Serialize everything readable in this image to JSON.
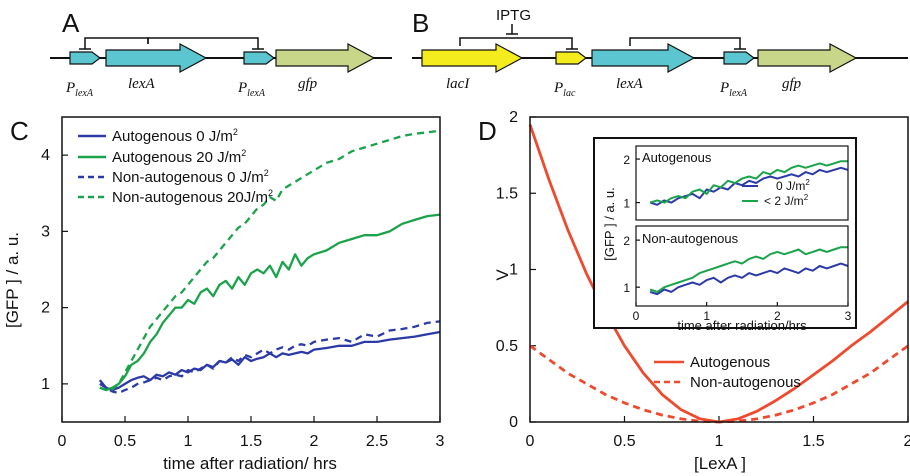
{
  "panels": {
    "a": {
      "label": "A",
      "genes": [
        "lexA",
        "gfp"
      ],
      "promoter_text": "P",
      "promoter_sub": "lexA"
    },
    "b": {
      "label": "B",
      "inducer": "IPTG",
      "genes": [
        "lacI",
        "lexA",
        "gfp"
      ],
      "promoters": [
        {
          "text": "P",
          "sub": "lac"
        },
        {
          "text": "P",
          "sub": "lexA"
        }
      ]
    },
    "c": {
      "label": "C"
    },
    "d": {
      "label": "D"
    }
  },
  "colors": {
    "blue": "#2c3aa8",
    "green": "#1aa34a",
    "red": "#ee4a2e",
    "cyan_gene": "#5bc6d0",
    "yellow_gene": "#f5ec1e",
    "olive_gene": "#c8d68a"
  },
  "chart_data": [
    {
      "id": "C",
      "type": "line",
      "xlabel": "time after radiation/ hrs",
      "ylabel": "[GFP ] / a. u.",
      "xlim": [
        0,
        3
      ],
      "ylim": [
        0.5,
        4.5
      ],
      "xticks": [
        0,
        0.5,
        1,
        1.5,
        2,
        2.5,
        3
      ],
      "xtick_labels": [
        "0",
        "0.5",
        "1",
        "1.5",
        "2",
        "2.5",
        "3"
      ],
      "yticks": [
        1,
        2,
        3,
        4
      ],
      "ytick_labels": [
        "1",
        "2",
        "3",
        "4"
      ],
      "legend": {
        "placement": "top-left"
      },
      "series": [
        {
          "name": "Autogenous  0 J/m",
          "unit_sup": "2",
          "color": "blue",
          "dash": false,
          "x": [
            0.3,
            0.35,
            0.4,
            0.45,
            0.5,
            0.55,
            0.6,
            0.65,
            0.7,
            0.75,
            0.8,
            0.85,
            0.9,
            0.95,
            1.0,
            1.05,
            1.1,
            1.15,
            1.2,
            1.25,
            1.3,
            1.35,
            1.4,
            1.45,
            1.5,
            1.55,
            1.6,
            1.65,
            1.7,
            1.75,
            1.8,
            1.85,
            1.9,
            1.95,
            2.0,
            2.1,
            2.2,
            2.3,
            2.4,
            2.5,
            2.6,
            2.7,
            2.8,
            2.9,
            3.0
          ],
          "y": [
            1.05,
            0.95,
            0.92,
            0.95,
            1.0,
            1.05,
            1.08,
            1.1,
            1.05,
            1.12,
            1.1,
            1.15,
            1.12,
            1.18,
            1.15,
            1.2,
            1.18,
            1.25,
            1.22,
            1.3,
            1.28,
            1.32,
            1.25,
            1.35,
            1.3,
            1.33,
            1.35,
            1.4,
            1.35,
            1.4,
            1.38,
            1.4,
            1.42,
            1.4,
            1.45,
            1.47,
            1.5,
            1.5,
            1.55,
            1.55,
            1.58,
            1.6,
            1.62,
            1.65,
            1.68
          ]
        },
        {
          "name": "Autogenous  20 J/m",
          "unit_sup": "2",
          "color": "green",
          "dash": false,
          "x": [
            0.3,
            0.35,
            0.4,
            0.45,
            0.5,
            0.55,
            0.6,
            0.65,
            0.7,
            0.75,
            0.8,
            0.85,
            0.9,
            0.95,
            1.0,
            1.05,
            1.1,
            1.15,
            1.2,
            1.25,
            1.3,
            1.35,
            1.4,
            1.45,
            1.5,
            1.55,
            1.6,
            1.65,
            1.7,
            1.75,
            1.8,
            1.85,
            1.9,
            1.95,
            2.0,
            2.1,
            2.2,
            2.3,
            2.4,
            2.5,
            2.6,
            2.7,
            2.8,
            2.9,
            3.0
          ],
          "y": [
            0.95,
            0.92,
            0.95,
            1.0,
            1.1,
            1.25,
            1.3,
            1.4,
            1.55,
            1.65,
            1.8,
            1.9,
            2.0,
            2.0,
            2.1,
            2.05,
            2.2,
            2.25,
            2.15,
            2.3,
            2.35,
            2.25,
            2.4,
            2.3,
            2.45,
            2.5,
            2.45,
            2.55,
            2.4,
            2.6,
            2.5,
            2.7,
            2.55,
            2.65,
            2.7,
            2.75,
            2.85,
            2.9,
            2.95,
            2.95,
            3.0,
            3.1,
            3.15,
            3.2,
            3.22
          ]
        },
        {
          "name": "Non-autogenous 0 J/m",
          "unit_sup": "2",
          "color": "blue",
          "dash": true,
          "x": [
            0.3,
            0.35,
            0.4,
            0.45,
            0.5,
            0.55,
            0.6,
            0.65,
            0.7,
            0.75,
            0.8,
            0.85,
            0.9,
            0.95,
            1.0,
            1.05,
            1.1,
            1.15,
            1.2,
            1.25,
            1.3,
            1.35,
            1.4,
            1.45,
            1.5,
            1.55,
            1.6,
            1.65,
            1.7,
            1.75,
            1.8,
            1.85,
            1.9,
            1.95,
            2.0,
            2.1,
            2.2,
            2.3,
            2.4,
            2.5,
            2.6,
            2.7,
            2.8,
            2.9,
            3.0
          ],
          "y": [
            1.0,
            0.95,
            0.9,
            0.88,
            0.92,
            0.95,
            1.0,
            1.02,
            1.05,
            1.08,
            1.05,
            1.1,
            1.12,
            1.1,
            1.18,
            1.15,
            1.2,
            1.25,
            1.2,
            1.3,
            1.28,
            1.35,
            1.3,
            1.38,
            1.35,
            1.4,
            1.45,
            1.4,
            1.45,
            1.48,
            1.45,
            1.5,
            1.52,
            1.5,
            1.55,
            1.58,
            1.6,
            1.55,
            1.65,
            1.62,
            1.7,
            1.72,
            1.75,
            1.8,
            1.82
          ]
        },
        {
          "name": "Non-autogenous 20J/m",
          "unit_sup": "2",
          "color": "green",
          "dash": true,
          "x": [
            0.3,
            0.35,
            0.4,
            0.45,
            0.5,
            0.55,
            0.6,
            0.65,
            0.7,
            0.75,
            0.8,
            0.85,
            0.9,
            0.95,
            1.0,
            1.05,
            1.1,
            1.15,
            1.2,
            1.25,
            1.3,
            1.35,
            1.4,
            1.45,
            1.5,
            1.55,
            1.6,
            1.65,
            1.7,
            1.75,
            1.8,
            1.85,
            1.9,
            1.95,
            2.0,
            2.1,
            2.2,
            2.3,
            2.4,
            2.5,
            2.6,
            2.7,
            2.8,
            2.9,
            3.0
          ],
          "y": [
            0.95,
            0.92,
            0.93,
            1.0,
            1.15,
            1.3,
            1.45,
            1.6,
            1.75,
            1.85,
            1.95,
            2.05,
            2.15,
            2.2,
            2.3,
            2.4,
            2.5,
            2.6,
            2.65,
            2.75,
            2.85,
            2.95,
            3.05,
            3.1,
            3.2,
            3.3,
            3.35,
            3.45,
            3.4,
            3.55,
            3.6,
            3.65,
            3.7,
            3.75,
            3.8,
            3.9,
            3.95,
            4.05,
            4.1,
            4.15,
            4.2,
            4.25,
            4.28,
            4.3,
            4.32
          ]
        }
      ]
    },
    {
      "id": "D",
      "type": "line",
      "xlabel": "[LexA ]",
      "ylabel": "V",
      "xlim": [
        0,
        2
      ],
      "ylim": [
        0,
        2
      ],
      "xticks": [
        0,
        0.5,
        1,
        1.5,
        2
      ],
      "xtick_labels": [
        "0",
        "0.5",
        "1",
        "1.5",
        "2"
      ],
      "yticks": [
        0,
        0.5,
        1,
        1.5,
        2
      ],
      "ytick_labels": [
        "0",
        "0.5",
        "1",
        "1.5",
        "2"
      ],
      "legend": {
        "placement": "bottom-right"
      },
      "series": [
        {
          "name": "Autogenous",
          "color": "red",
          "dash": false,
          "x": [
            0,
            0.1,
            0.2,
            0.3,
            0.4,
            0.5,
            0.6,
            0.7,
            0.8,
            0.9,
            1.0,
            1.1,
            1.2,
            1.3,
            1.4,
            1.5,
            1.6,
            1.7,
            1.8,
            1.9,
            2.0
          ],
          "y": [
            1.95,
            1.59,
            1.26,
            0.97,
            0.72,
            0.5,
            0.32,
            0.18,
            0.08,
            0.02,
            0.0,
            0.02,
            0.07,
            0.14,
            0.22,
            0.31,
            0.4,
            0.5,
            0.59,
            0.69,
            0.79
          ]
        },
        {
          "name": "Non-autogenous",
          "color": "red",
          "dash": true,
          "x": [
            0,
            0.1,
            0.2,
            0.3,
            0.4,
            0.5,
            0.6,
            0.7,
            0.8,
            0.9,
            1.0,
            1.1,
            1.2,
            1.3,
            1.4,
            1.5,
            1.6,
            1.7,
            1.8,
            1.9,
            2.0
          ],
          "y": [
            0.5,
            0.41,
            0.32,
            0.25,
            0.18,
            0.125,
            0.08,
            0.045,
            0.02,
            0.005,
            0.0,
            0.005,
            0.02,
            0.045,
            0.08,
            0.125,
            0.18,
            0.25,
            0.32,
            0.41,
            0.5
          ]
        }
      ]
    },
    {
      "id": "D-inset-top",
      "type": "line",
      "title": "Autogenous",
      "xlim": [
        0,
        3
      ],
      "ylim": [
        0.6,
        2.3
      ],
      "yticks": [
        1,
        2
      ],
      "ytick_labels": [
        "1",
        "2"
      ],
      "legend": {
        "placement": "bottom-right"
      },
      "series": [
        {
          "name": "0 J/m",
          "unit_sup": "2",
          "color": "blue",
          "x": [
            0.2,
            0.3,
            0.4,
            0.5,
            0.6,
            0.7,
            0.8,
            0.9,
            1.0,
            1.1,
            1.2,
            1.3,
            1.4,
            1.5,
            1.6,
            1.7,
            1.8,
            1.9,
            2.0,
            2.1,
            2.2,
            2.3,
            2.4,
            2.5,
            2.6,
            2.7,
            2.8,
            2.9,
            3.0
          ],
          "y": [
            1.0,
            0.95,
            1.05,
            1.0,
            1.1,
            1.15,
            1.2,
            1.1,
            1.3,
            1.25,
            1.35,
            1.3,
            1.45,
            1.4,
            1.5,
            1.45,
            1.55,
            1.6,
            1.55,
            1.6,
            1.65,
            1.6,
            1.7,
            1.65,
            1.75,
            1.7,
            1.75,
            1.8,
            1.75
          ]
        },
        {
          "name": "< 2 J/m",
          "unit_sup": "2",
          "color": "green",
          "x": [
            0.2,
            0.3,
            0.4,
            0.5,
            0.6,
            0.7,
            0.8,
            0.9,
            1.0,
            1.1,
            1.2,
            1.3,
            1.4,
            1.5,
            1.6,
            1.7,
            1.8,
            1.9,
            2.0,
            2.1,
            2.2,
            2.3,
            2.4,
            2.5,
            2.6,
            2.7,
            2.8,
            2.9,
            3.0
          ],
          "y": [
            1.0,
            1.05,
            1.0,
            1.1,
            1.15,
            1.1,
            1.25,
            1.3,
            1.2,
            1.4,
            1.35,
            1.5,
            1.45,
            1.55,
            1.6,
            1.55,
            1.7,
            1.65,
            1.75,
            1.7,
            1.8,
            1.85,
            1.8,
            1.85,
            1.9,
            1.85,
            1.9,
            1.95,
            1.95
          ]
        }
      ]
    },
    {
      "id": "D-inset-bottom",
      "type": "line",
      "title": "Non-autogenous",
      "xlabel": "time after radiation/hrs",
      "ylabel": "[GFP ] / a. u.",
      "xlim": [
        0,
        3
      ],
      "ylim": [
        0.6,
        2.3
      ],
      "xticks": [
        0,
        1,
        2,
        3
      ],
      "xtick_labels": [
        "0",
        "1",
        "2",
        "3"
      ],
      "yticks": [
        1,
        2
      ],
      "ytick_labels": [
        "1",
        "2"
      ],
      "series": [
        {
          "name": "blue",
          "color": "blue",
          "x": [
            0.2,
            0.3,
            0.4,
            0.5,
            0.6,
            0.7,
            0.8,
            0.9,
            1.0,
            1.1,
            1.2,
            1.3,
            1.4,
            1.5,
            1.6,
            1.7,
            1.8,
            1.9,
            2.0,
            2.1,
            2.2,
            2.3,
            2.4,
            2.5,
            2.6,
            2.7,
            2.8,
            2.9,
            3.0
          ],
          "y": [
            0.9,
            0.85,
            0.95,
            0.9,
            1.0,
            1.05,
            1.1,
            1.05,
            1.15,
            1.2,
            1.1,
            1.2,
            1.25,
            1.2,
            1.3,
            1.25,
            1.3,
            1.35,
            1.3,
            1.4,
            1.35,
            1.3,
            1.4,
            1.35,
            1.45,
            1.4,
            1.45,
            1.5,
            1.45
          ]
        },
        {
          "name": "green",
          "color": "green",
          "x": [
            0.2,
            0.3,
            0.4,
            0.5,
            0.6,
            0.7,
            0.8,
            0.9,
            1.0,
            1.1,
            1.2,
            1.3,
            1.4,
            1.5,
            1.6,
            1.7,
            1.8,
            1.9,
            2.0,
            2.1,
            2.2,
            2.3,
            2.4,
            2.5,
            2.6,
            2.7,
            2.8,
            2.9,
            3.0
          ],
          "y": [
            0.95,
            0.9,
            1.0,
            1.05,
            1.1,
            1.15,
            1.2,
            1.3,
            1.35,
            1.4,
            1.45,
            1.5,
            1.55,
            1.5,
            1.6,
            1.65,
            1.6,
            1.7,
            1.75,
            1.7,
            1.75,
            1.8,
            1.7,
            1.75,
            1.8,
            1.75,
            1.8,
            1.85,
            1.85
          ]
        }
      ]
    }
  ]
}
